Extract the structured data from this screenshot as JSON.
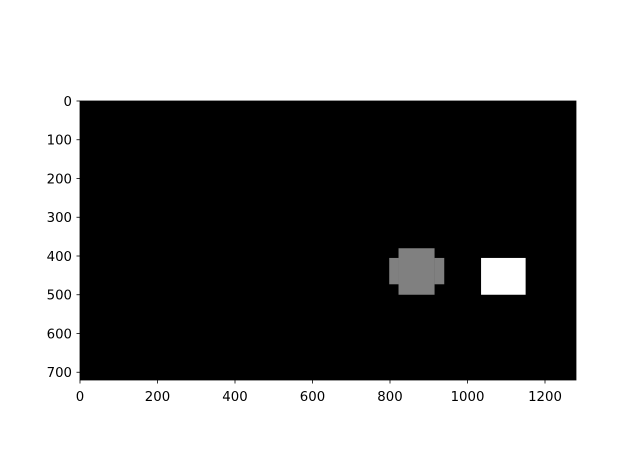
{
  "chart_data": {
    "type": "heatmap",
    "title": "",
    "xlabel": "",
    "ylabel": "",
    "xlim": [
      0,
      1280
    ],
    "ylim": [
      720,
      0
    ],
    "background_color": "#000000",
    "colors": {
      "gray": "#808080",
      "white": "#ffffff",
      "black": "#000000"
    },
    "x_ticks": [
      {
        "value": 0,
        "label": "0"
      },
      {
        "value": 200,
        "label": "200"
      },
      {
        "value": 400,
        "label": "400"
      },
      {
        "value": 600,
        "label": "600"
      },
      {
        "value": 800,
        "label": "800"
      },
      {
        "value": 1000,
        "label": "1000"
      },
      {
        "value": 1200,
        "label": "1200"
      }
    ],
    "y_ticks": [
      {
        "value": 0,
        "label": "0"
      },
      {
        "value": 100,
        "label": "100"
      },
      {
        "value": 200,
        "label": "200"
      },
      {
        "value": 300,
        "label": "300"
      },
      {
        "value": 400,
        "label": "400"
      },
      {
        "value": 500,
        "label": "500"
      },
      {
        "value": 600,
        "label": "600"
      },
      {
        "value": 700,
        "label": "700"
      }
    ],
    "regions": [
      {
        "name": "gray-blob-core",
        "color": "gray",
        "x": [
          822,
          915
        ],
        "y": [
          380,
          500
        ]
      },
      {
        "name": "gray-blob-left",
        "color": "gray",
        "x": [
          798,
          822
        ],
        "y": [
          405,
          473
        ]
      },
      {
        "name": "gray-blob-right",
        "color": "gray",
        "x": [
          915,
          940
        ],
        "y": [
          405,
          473
        ]
      },
      {
        "name": "white-rectangle",
        "color": "white",
        "x": [
          1035,
          1150
        ],
        "y": [
          405,
          500
        ]
      }
    ]
  }
}
